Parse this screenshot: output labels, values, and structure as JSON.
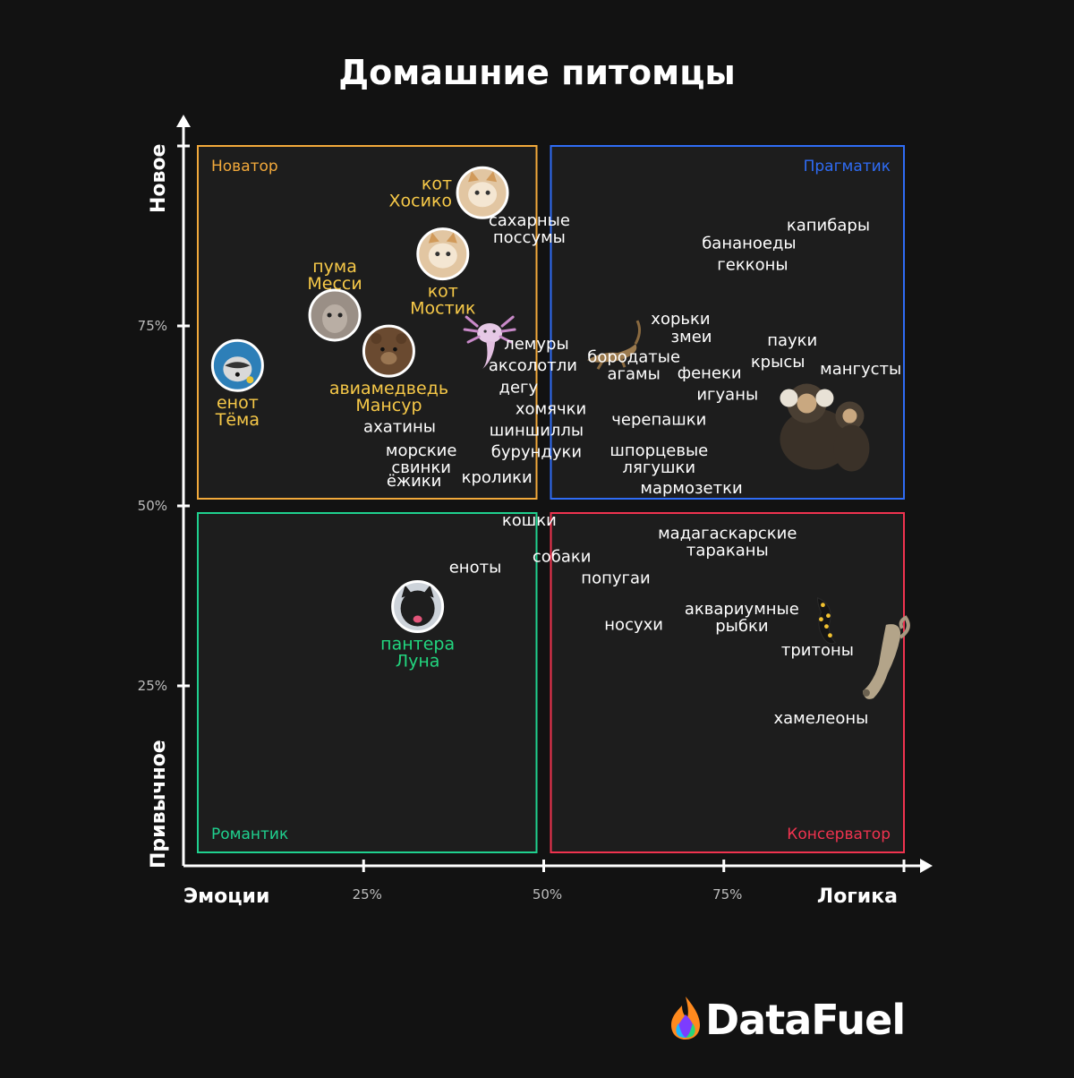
{
  "title": "Домашние питомцы",
  "brand": {
    "name": "DataFuel",
    "colors": [
      "#ff7a1a",
      "#ffc21a",
      "#e8304a",
      "#7c3cff",
      "#1ab8ff",
      "#28d67a"
    ]
  },
  "chart_data": {
    "type": "scatter",
    "xlabel_left": "Эмоции",
    "xlabel_right": "Логика",
    "ylabel_bottom": "Привычное",
    "ylabel_top": "Новое",
    "xlim": [
      0,
      100
    ],
    "ylim": [
      0,
      100
    ],
    "x_ticks": [
      {
        "value": 25,
        "label": "25%"
      },
      {
        "value": 50,
        "label": "50%"
      },
      {
        "value": 75,
        "label": "75%"
      }
    ],
    "y_ticks": [
      {
        "value": 25,
        "label": "25%"
      },
      {
        "value": 50,
        "label": "50%"
      },
      {
        "value": 75,
        "label": "75%"
      }
    ],
    "quadrants": [
      {
        "name": "Новатор",
        "x": [
          0,
          50
        ],
        "y": [
          50,
          100
        ],
        "color": "#f2a93b",
        "label_align": "left"
      },
      {
        "name": "Прагматик",
        "x": [
          50,
          100
        ],
        "y": [
          50,
          100
        ],
        "color": "#2f6cf5",
        "label_align": "right"
      },
      {
        "name": "Романтик",
        "x": [
          0,
          50
        ],
        "y": [
          0,
          50
        ],
        "color": "#1fd18f",
        "label_align": "left"
      },
      {
        "name": "Консерватор",
        "x": [
          50,
          100
        ],
        "y": [
          0,
          50
        ],
        "color": "#f0334f",
        "label_align": "right"
      }
    ],
    "highlights": [
      {
        "label": [
          "кот",
          "Хосико"
        ],
        "x": 41.5,
        "y": 93.5,
        "color": "#f7c948",
        "label_side": "left",
        "icon": "cat-icon"
      },
      {
        "label": [
          "кот",
          "Мостик"
        ],
        "x": 36,
        "y": 85,
        "color": "#f7c948",
        "label_side": "below",
        "icon": "cat-icon"
      },
      {
        "label": [
          "пума",
          "Месси"
        ],
        "x": 21,
        "y": 76.5,
        "color": "#f7c948",
        "label_side": "above",
        "icon": "puma-icon"
      },
      {
        "label": [
          "авиамедведь",
          "Мансур"
        ],
        "x": 28.5,
        "y": 71.5,
        "color": "#f7c948",
        "label_side": "below",
        "icon": "bear-icon"
      },
      {
        "label": [
          "енот",
          "Тёма"
        ],
        "x": 7.5,
        "y": 69.5,
        "color": "#f7c948",
        "label_side": "below",
        "icon": "raccoon-icon"
      },
      {
        "label": [
          "пантера",
          "Луна"
        ],
        "x": 32.5,
        "y": 36,
        "color": "#22d67f",
        "label_side": "below",
        "icon": "panther-icon"
      }
    ],
    "points": [
      {
        "label": [
          "сахарные",
          "поссумы"
        ],
        "x": 48,
        "y": 88.5
      },
      {
        "label": [
          "капибары"
        ],
        "x": 89.5,
        "y": 89
      },
      {
        "label": [
          "бананоеды"
        ],
        "x": 78.5,
        "y": 86.5
      },
      {
        "label": [
          "гекконы"
        ],
        "x": 79,
        "y": 83.5
      },
      {
        "label": [
          "хорьки"
        ],
        "x": 69,
        "y": 76
      },
      {
        "label": [
          "змеи"
        ],
        "x": 70.5,
        "y": 73.5
      },
      {
        "label": [
          "пауки"
        ],
        "x": 84.5,
        "y": 73
      },
      {
        "label": [
          "лемуры"
        ],
        "x": 49,
        "y": 72.5
      },
      {
        "label": [
          "бородатые",
          "агамы"
        ],
        "x": 62.5,
        "y": 69.5
      },
      {
        "label": [
          "крысы"
        ],
        "x": 82.5,
        "y": 70
      },
      {
        "label": [
          "мангусты"
        ],
        "x": 94,
        "y": 69
      },
      {
        "label": [
          "аксолотли"
        ],
        "x": 48.5,
        "y": 69.5
      },
      {
        "label": [
          "фенеки"
        ],
        "x": 73,
        "y": 68.5
      },
      {
        "label": [
          "дегу"
        ],
        "x": 46.5,
        "y": 66.5
      },
      {
        "label": [
          "игуаны"
        ],
        "x": 75.5,
        "y": 65.5
      },
      {
        "label": [
          "хомячки"
        ],
        "x": 51,
        "y": 63.5
      },
      {
        "label": [
          "черепашки"
        ],
        "x": 66,
        "y": 62
      },
      {
        "label": [
          "ахатины"
        ],
        "x": 30,
        "y": 61
      },
      {
        "label": [
          "шиншиллы"
        ],
        "x": 49,
        "y": 60.5
      },
      {
        "label": [
          "морские",
          "свинки"
        ],
        "x": 33,
        "y": 56.5
      },
      {
        "label": [
          "бурундуки"
        ],
        "x": 49,
        "y": 57.5
      },
      {
        "label": [
          "шпорцевые",
          "лягушки"
        ],
        "x": 66,
        "y": 56.5
      },
      {
        "label": [
          "ёжики"
        ],
        "x": 32,
        "y": 53.5
      },
      {
        "label": [
          "кролики"
        ],
        "x": 43.5,
        "y": 54
      },
      {
        "label": [
          "мармозетки"
        ],
        "x": 70.5,
        "y": 52.5
      },
      {
        "label": [
          "кошки"
        ],
        "x": 48,
        "y": 48
      },
      {
        "label": [
          "мадагаскарские",
          "тараканы"
        ],
        "x": 75.5,
        "y": 45
      },
      {
        "label": [
          "собаки"
        ],
        "x": 52.5,
        "y": 43
      },
      {
        "label": [
          "еноты"
        ],
        "x": 40.5,
        "y": 41.5
      },
      {
        "label": [
          "попугаи"
        ],
        "x": 60,
        "y": 40
      },
      {
        "label": [
          "аквариумные",
          "рыбки"
        ],
        "x": 77.5,
        "y": 34.5
      },
      {
        "label": [
          "носухи"
        ],
        "x": 62.5,
        "y": 33.5
      },
      {
        "label": [
          "тритоны"
        ],
        "x": 88,
        "y": 30
      },
      {
        "label": [
          "хамелеоны"
        ],
        "x": 88.5,
        "y": 20.5
      }
    ],
    "pictures": [
      {
        "icon": "axolotl-icon",
        "x": 42.5,
        "y": 74
      },
      {
        "icon": "lizard-icon",
        "x": 59.5,
        "y": 72
      },
      {
        "icon": "marmoset-icon",
        "x": 89,
        "y": 61.5
      },
      {
        "icon": "newt-icon",
        "x": 89,
        "y": 34
      },
      {
        "icon": "chameleon-icon",
        "x": 98,
        "y": 28
      }
    ]
  }
}
